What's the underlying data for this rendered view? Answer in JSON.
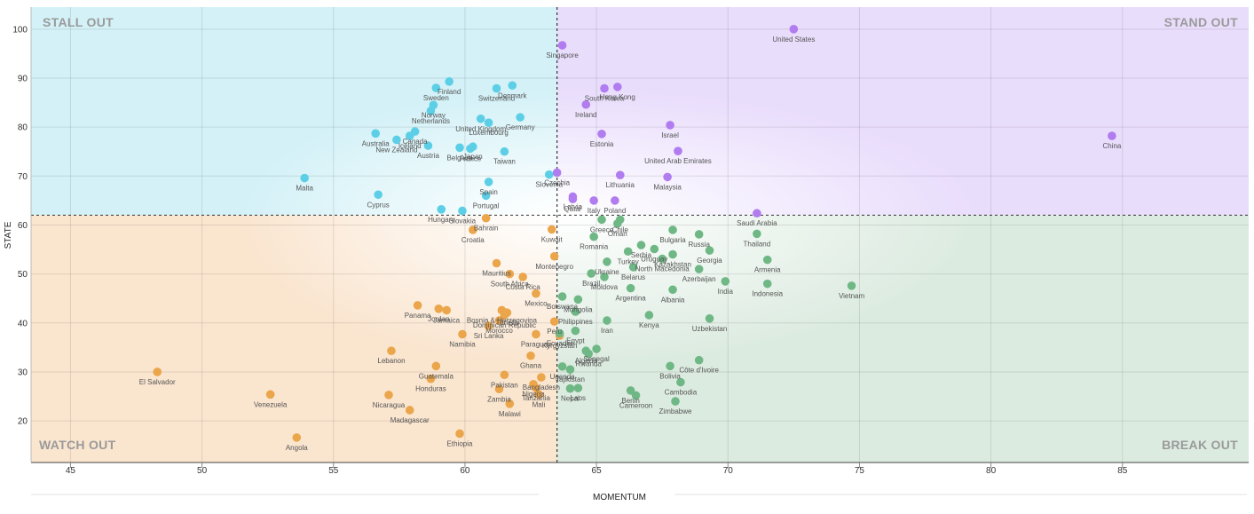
{
  "chart_data": {
    "type": "scatter",
    "xlabel": "MOMENTUM",
    "ylabel": "STATE",
    "xlim": [
      43.5,
      89.8
    ],
    "ylim": [
      11.5,
      104.5
    ],
    "x_ticks": [
      45,
      50,
      55,
      60,
      65,
      70,
      75,
      80,
      85
    ],
    "y_ticks": [
      20,
      30,
      40,
      50,
      60,
      70,
      80,
      90,
      100
    ],
    "grid": true,
    "x_divider": 63.5,
    "y_divider": 62,
    "quadrants": {
      "top_left": "STALL OUT",
      "top_right": "STAND OUT",
      "bottom_left": "WATCH OUT",
      "bottom_right": "BREAK OUT"
    },
    "colors": {
      "stall_out": "#5ccfe6",
      "stand_out": "#b07cf0",
      "watch_out": "#eba54a",
      "break_out": "#6fb886",
      "stall_out_bg": "#d3f1f7",
      "stand_out_bg": "#e9ddfc",
      "watch_out_bg": "#fae5cf",
      "break_out_bg": "#dcebe0"
    },
    "series": [
      {
        "group": "stall_out",
        "points": [
          {
            "label": "Finland",
            "x": 59.4,
            "y": 89.3
          },
          {
            "label": "Sweden",
            "x": 58.9,
            "y": 88.0
          },
          {
            "label": "Switzerland",
            "x": 61.2,
            "y": 87.9
          },
          {
            "label": "Denmark",
            "x": 61.8,
            "y": 88.5
          },
          {
            "label": "Norway",
            "x": 58.8,
            "y": 84.5
          },
          {
            "label": "Netherlands",
            "x": 58.7,
            "y": 83.3
          },
          {
            "label": "Germany",
            "x": 62.1,
            "y": 82.0
          },
          {
            "label": "United Kingdom",
            "x": 60.6,
            "y": 81.7
          },
          {
            "label": "Luxembourg",
            "x": 60.9,
            "y": 80.9
          },
          {
            "label": "Australia",
            "x": 56.6,
            "y": 78.7
          },
          {
            "label": "Canada",
            "x": 58.1,
            "y": 79.1
          },
          {
            "label": "Iceland",
            "x": 57.9,
            "y": 78.2
          },
          {
            "label": "New Zealand",
            "x": 57.4,
            "y": 77.4
          },
          {
            "label": "Japan",
            "x": 60.3,
            "y": 76.0
          },
          {
            "label": "Austria",
            "x": 58.6,
            "y": 76.2
          },
          {
            "label": "Belgium",
            "x": 59.8,
            "y": 75.8
          },
          {
            "label": "France",
            "x": 60.2,
            "y": 75.6
          },
          {
            "label": "Taiwan",
            "x": 61.5,
            "y": 75.0
          },
          {
            "label": "Malta",
            "x": 53.9,
            "y": 69.6
          },
          {
            "label": "Spain",
            "x": 60.9,
            "y": 68.8
          },
          {
            "label": "Slovenia",
            "x": 63.2,
            "y": 70.3
          },
          {
            "label": "Cyprus",
            "x": 56.7,
            "y": 66.2
          },
          {
            "label": "Portugal",
            "x": 60.8,
            "y": 66.0
          },
          {
            "label": "Hungary",
            "x": 59.1,
            "y": 63.2
          },
          {
            "label": "Slovakia",
            "x": 59.9,
            "y": 62.9
          }
        ]
      },
      {
        "group": "stand_out",
        "points": [
          {
            "label": "United States",
            "x": 72.5,
            "y": 100.0
          },
          {
            "label": "Singapore",
            "x": 63.7,
            "y": 96.7
          },
          {
            "label": "Hong Kong",
            "x": 65.8,
            "y": 88.2
          },
          {
            "label": "South Korea",
            "x": 65.3,
            "y": 87.9
          },
          {
            "label": "Ireland",
            "x": 64.6,
            "y": 84.6
          },
          {
            "label": "Israel",
            "x": 67.8,
            "y": 80.4
          },
          {
            "label": "Estonia",
            "x": 65.2,
            "y": 78.6
          },
          {
            "label": "China",
            "x": 84.6,
            "y": 78.2
          },
          {
            "label": "United Arab Emirates",
            "x": 68.1,
            "y": 75.1
          },
          {
            "label": "Czechia",
            "x": 63.5,
            "y": 70.7
          },
          {
            "label": "Lithuania",
            "x": 65.9,
            "y": 70.2
          },
          {
            "label": "Malaysia",
            "x": 67.7,
            "y": 69.8
          },
          {
            "label": "Latvia",
            "x": 64.1,
            "y": 65.8
          },
          {
            "label": "Qatar",
            "x": 64.1,
            "y": 65.3
          },
          {
            "label": "Italy",
            "x": 64.9,
            "y": 65.0
          },
          {
            "label": "Poland",
            "x": 65.7,
            "y": 65.0
          },
          {
            "label": "Saudi Arabia",
            "x": 71.1,
            "y": 62.4
          }
        ]
      },
      {
        "group": "watch_out",
        "points": [
          {
            "label": "Croatia",
            "x": 60.3,
            "y": 59.0
          },
          {
            "label": "Bahrain",
            "x": 60.8,
            "y": 61.4
          },
          {
            "label": "Kuwait",
            "x": 63.3,
            "y": 59.1
          },
          {
            "label": "Montenegro",
            "x": 63.4,
            "y": 53.6
          },
          {
            "label": "Mauritius",
            "x": 61.2,
            "y": 52.2
          },
          {
            "label": "South Africa",
            "x": 61.7,
            "y": 50.0
          },
          {
            "label": "Costa Rica",
            "x": 62.2,
            "y": 49.4
          },
          {
            "label": "Mexico",
            "x": 62.7,
            "y": 46.0
          },
          {
            "label": "Panama",
            "x": 58.2,
            "y": 43.6
          },
          {
            "label": "Jordan",
            "x": 59.0,
            "y": 42.9
          },
          {
            "label": "Jamaica",
            "x": 59.3,
            "y": 42.6
          },
          {
            "label": "Bosnia & Herzegovina",
            "x": 61.4,
            "y": 42.6
          },
          {
            "label": "Tunisia",
            "x": 61.6,
            "y": 42.1
          },
          {
            "label": "Dominican Republic",
            "x": 61.5,
            "y": 41.6
          },
          {
            "label": "Morocco",
            "x": 61.3,
            "y": 40.5
          },
          {
            "label": "Sri Lanka",
            "x": 60.9,
            "y": 39.4
          },
          {
            "label": "Peru",
            "x": 63.4,
            "y": 40.3
          },
          {
            "label": "Namibia",
            "x": 59.9,
            "y": 37.7
          },
          {
            "label": "Paraguay",
            "x": 62.7,
            "y": 37.7
          },
          {
            "label": "Kyrgyzstan",
            "x": 63.6,
            "y": 37.4
          },
          {
            "label": "Lebanon",
            "x": 57.2,
            "y": 34.3
          },
          {
            "label": "Ghana",
            "x": 62.5,
            "y": 33.3
          },
          {
            "label": "El Salvador",
            "x": 48.3,
            "y": 30.0
          },
          {
            "label": "Guatemala",
            "x": 58.9,
            "y": 31.2
          },
          {
            "label": "Honduras",
            "x": 58.7,
            "y": 28.6
          },
          {
            "label": "Bangladesh",
            "x": 62.9,
            "y": 28.9
          },
          {
            "label": "Pakistan",
            "x": 61.5,
            "y": 29.4
          },
          {
            "label": "Nigeria",
            "x": 62.6,
            "y": 27.5
          },
          {
            "label": "Tanzania",
            "x": 62.7,
            "y": 26.7
          },
          {
            "label": "Zambia",
            "x": 61.3,
            "y": 26.5
          },
          {
            "label": "Mali",
            "x": 62.8,
            "y": 25.4
          },
          {
            "label": "Venezuela",
            "x": 52.6,
            "y": 25.4
          },
          {
            "label": "Nicaragua",
            "x": 57.1,
            "y": 25.3
          },
          {
            "label": "Malawi",
            "x": 61.7,
            "y": 23.5
          },
          {
            "label": "Madagascar",
            "x": 57.9,
            "y": 22.2
          },
          {
            "label": "Angola",
            "x": 53.6,
            "y": 16.6
          },
          {
            "label": "Ethiopia",
            "x": 59.8,
            "y": 17.4
          }
        ]
      },
      {
        "group": "break_out",
        "points": [
          {
            "label": "Greece",
            "x": 65.2,
            "y": 61.1
          },
          {
            "label": "Chile",
            "x": 65.9,
            "y": 61.1
          },
          {
            "label": "Oman",
            "x": 65.8,
            "y": 60.3
          },
          {
            "label": "Romania",
            "x": 64.9,
            "y": 57.6
          },
          {
            "label": "Bulgaria",
            "x": 67.9,
            "y": 59.0
          },
          {
            "label": "Russia",
            "x": 68.9,
            "y": 58.1
          },
          {
            "label": "Thailand",
            "x": 71.1,
            "y": 58.2
          },
          {
            "label": "Serbia",
            "x": 66.7,
            "y": 55.9
          },
          {
            "label": "Uruguay",
            "x": 67.2,
            "y": 55.1
          },
          {
            "label": "Turkey",
            "x": 66.2,
            "y": 54.6
          },
          {
            "label": "Kazakhstan",
            "x": 67.9,
            "y": 54.0
          },
          {
            "label": "North Macedonia",
            "x": 67.5,
            "y": 53.1
          },
          {
            "label": "Georgia",
            "x": 69.3,
            "y": 54.8
          },
          {
            "label": "Armenia",
            "x": 71.5,
            "y": 52.9
          },
          {
            "label": "Ukraine",
            "x": 65.4,
            "y": 52.5
          },
          {
            "label": "Belarus",
            "x": 66.4,
            "y": 51.4
          },
          {
            "label": "Brazil",
            "x": 64.8,
            "y": 50.1
          },
          {
            "label": "Moldova",
            "x": 65.3,
            "y": 49.4
          },
          {
            "label": "Azerbaijan",
            "x": 68.9,
            "y": 51.0
          },
          {
            "label": "India",
            "x": 69.9,
            "y": 48.5
          },
          {
            "label": "Indonesia",
            "x": 71.5,
            "y": 48.0
          },
          {
            "label": "Vietnam",
            "x": 74.7,
            "y": 47.6
          },
          {
            "label": "Argentina",
            "x": 66.3,
            "y": 47.1
          },
          {
            "label": "Albania",
            "x": 67.9,
            "y": 46.8
          },
          {
            "label": "Mongolia",
            "x": 64.3,
            "y": 44.8
          },
          {
            "label": "Botswana",
            "x": 63.7,
            "y": 45.4
          },
          {
            "label": "Philippines",
            "x": 64.2,
            "y": 42.3
          },
          {
            "label": "Kenya",
            "x": 67.0,
            "y": 41.6
          },
          {
            "label": "Uzbekistan",
            "x": 69.3,
            "y": 40.9
          },
          {
            "label": "Iran",
            "x": 65.4,
            "y": 40.5
          },
          {
            "label": "Egypt",
            "x": 64.2,
            "y": 38.4
          },
          {
            "label": "Ecuador",
            "x": 63.6,
            "y": 37.9
          },
          {
            "label": "Algeria",
            "x": 64.6,
            "y": 34.3
          },
          {
            "label": "Senegal",
            "x": 65.0,
            "y": 34.7
          },
          {
            "label": "Rwanda",
            "x": 64.7,
            "y": 33.7
          },
          {
            "label": "Uganda",
            "x": 63.7,
            "y": 31.1
          },
          {
            "label": "Tajikistan",
            "x": 64.0,
            "y": 30.5
          },
          {
            "label": "Bolivia",
            "x": 67.8,
            "y": 31.2
          },
          {
            "label": "Côte d'Ivoire",
            "x": 68.9,
            "y": 32.4
          },
          {
            "label": "Cambodia",
            "x": 68.2,
            "y": 27.9
          },
          {
            "label": "Nepal",
            "x": 64.0,
            "y": 26.6
          },
          {
            "label": "Laos",
            "x": 64.3,
            "y": 26.7
          },
          {
            "label": "Benin",
            "x": 66.3,
            "y": 26.2
          },
          {
            "label": "Cameroon",
            "x": 66.5,
            "y": 25.2
          },
          {
            "label": "Zimbabwe",
            "x": 68.0,
            "y": 24.0
          }
        ]
      }
    ]
  }
}
